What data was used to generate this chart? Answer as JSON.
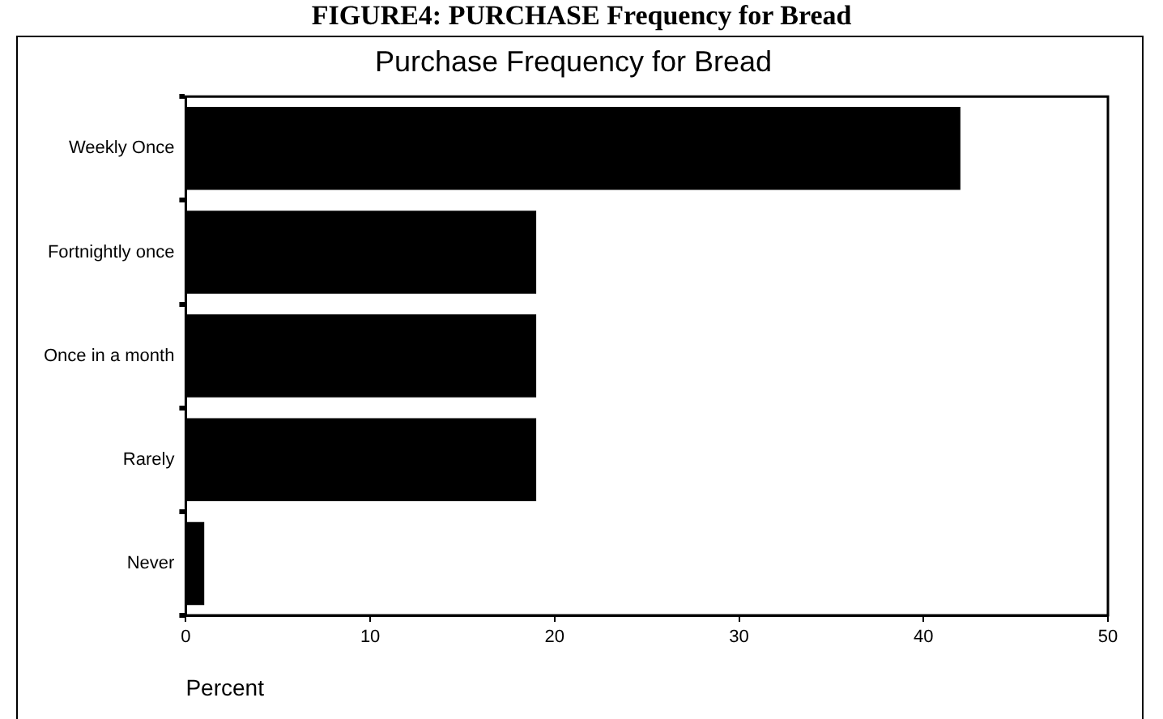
{
  "chart_data": {
    "type": "bar",
    "orientation": "horizontal",
    "title": "Purchase Frequency for Bread",
    "xlabel": "Percent",
    "annotations": [
      "FIGURE4: PURCHASE Frequency for Bread"
    ],
    "categories": [
      "Weekly Once",
      "Fortnightly once",
      "Once in a month",
      "Rarely",
      "Never"
    ],
    "values": [
      42,
      19,
      19,
      19,
      1
    ],
    "color": "#000000",
    "xlim": [
      0,
      50
    ],
    "xticks": [
      0,
      10,
      20,
      30,
      40,
      50
    ],
    "grid": false,
    "legend": false
  }
}
